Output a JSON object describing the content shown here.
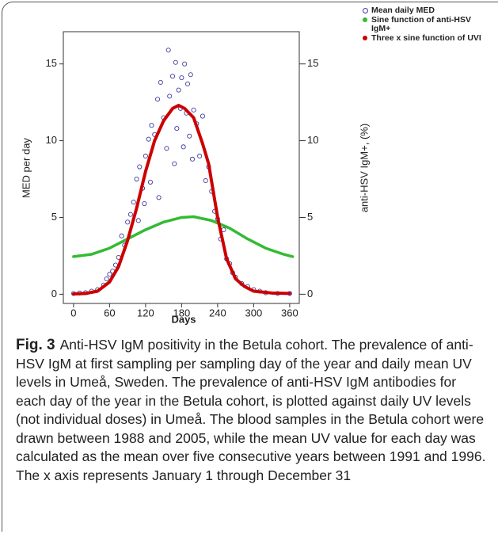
{
  "chart_data": {
    "type": "scatter",
    "xlabel": "Days",
    "ylabel": "MED per day",
    "y2label": "anti-HSV IgM+, (%)",
    "xlim": [
      -17,
      376
    ],
    "xticks": [
      0,
      60,
      120,
      180,
      240,
      300,
      360
    ],
    "ylim": [
      -0.6,
      17.1
    ],
    "yticks": [
      0,
      5,
      10,
      15
    ],
    "y2lim": [
      -0.6,
      17.1
    ],
    "y2ticks": [
      0,
      5,
      10,
      15
    ],
    "series": [
      {
        "name": "Mean daily MED",
        "type": "scatter",
        "color": "#3f3f9f",
        "x": [
          0,
          10,
          20,
          30,
          40,
          50,
          55,
          60,
          65,
          70,
          75,
          80,
          85,
          90,
          95,
          100,
          105,
          108,
          110,
          115,
          118,
          120,
          125,
          128,
          130,
          135,
          140,
          142,
          145,
          150,
          155,
          158,
          160,
          165,
          168,
          170,
          172,
          175,
          178,
          180,
          183,
          185,
          188,
          190,
          193,
          195,
          198,
          200,
          205,
          210,
          215,
          220,
          225,
          230,
          235,
          240,
          245,
          250,
          255,
          260,
          265,
          270,
          280,
          290,
          300,
          310,
          320,
          340,
          360
        ],
        "values": [
          0.05,
          0.08,
          0.1,
          0.2,
          0.3,
          0.6,
          1.0,
          1.3,
          1.5,
          1.9,
          2.4,
          3.8,
          3.2,
          4.7,
          5.2,
          6.0,
          7.5,
          4.8,
          8.3,
          6.9,
          5.9,
          9.0,
          10.1,
          7.3,
          11.0,
          10.4,
          12.7,
          6.3,
          13.8,
          11.5,
          9.5,
          15.9,
          12.9,
          14.2,
          8.5,
          15.1,
          10.8,
          13.3,
          12.1,
          14.1,
          9.6,
          15.0,
          11.8,
          13.7,
          10.3,
          14.3,
          8.8,
          12.0,
          11.1,
          9.0,
          11.6,
          7.4,
          8.3,
          6.7,
          5.4,
          4.9,
          3.6,
          4.2,
          2.3,
          2.0,
          1.4,
          1.1,
          0.7,
          0.5,
          0.3,
          0.2,
          0.1,
          0.05,
          0.05
        ]
      },
      {
        "name": "Sine function of anti-HSV IgM+",
        "type": "line",
        "color": "#33bb33",
        "axis": "y2",
        "x": [
          0,
          30,
          60,
          90,
          120,
          150,
          180,
          200,
          230,
          260,
          290,
          320,
          350,
          365
        ],
        "values": [
          2.45,
          2.6,
          3.0,
          3.6,
          4.2,
          4.7,
          5.0,
          5.05,
          4.8,
          4.3,
          3.6,
          3.0,
          2.6,
          2.45
        ]
      },
      {
        "name": "Three x sine function of UVI",
        "type": "line",
        "color": "#cc0000",
        "x": [
          0,
          20,
          40,
          60,
          75,
          90,
          105,
          120,
          135,
          150,
          165,
          175,
          185,
          200,
          215,
          225,
          240,
          255,
          270,
          285,
          300,
          330,
          360
        ],
        "values": [
          0.02,
          0.05,
          0.2,
          0.8,
          1.8,
          3.5,
          5.6,
          8.0,
          10.0,
          11.3,
          12.1,
          12.3,
          12.1,
          11.5,
          9.8,
          8.5,
          5.0,
          2.3,
          1.0,
          0.5,
          0.2,
          0.08,
          0.05
        ]
      }
    ]
  },
  "caption": {
    "label": "Fig. 3",
    "text": "Anti-HSV IgM positivity in the Betula cohort. The prevalence of anti-HSV IgM at first sampling per sampling day of the year and daily mean UV levels in Umeå, Sweden. The prevalence of anti-HSV IgM antibodies for each day of the year in the Betula cohort, is plotted against daily UV levels (not individual doses) in Umeå. The blood samples in the Betula cohort were drawn between 1988 and 2005, while the mean UV value for each day was calculated as the mean over five consecutive years between 1991 and 1996. The x axis represents January 1 through December 31"
  }
}
